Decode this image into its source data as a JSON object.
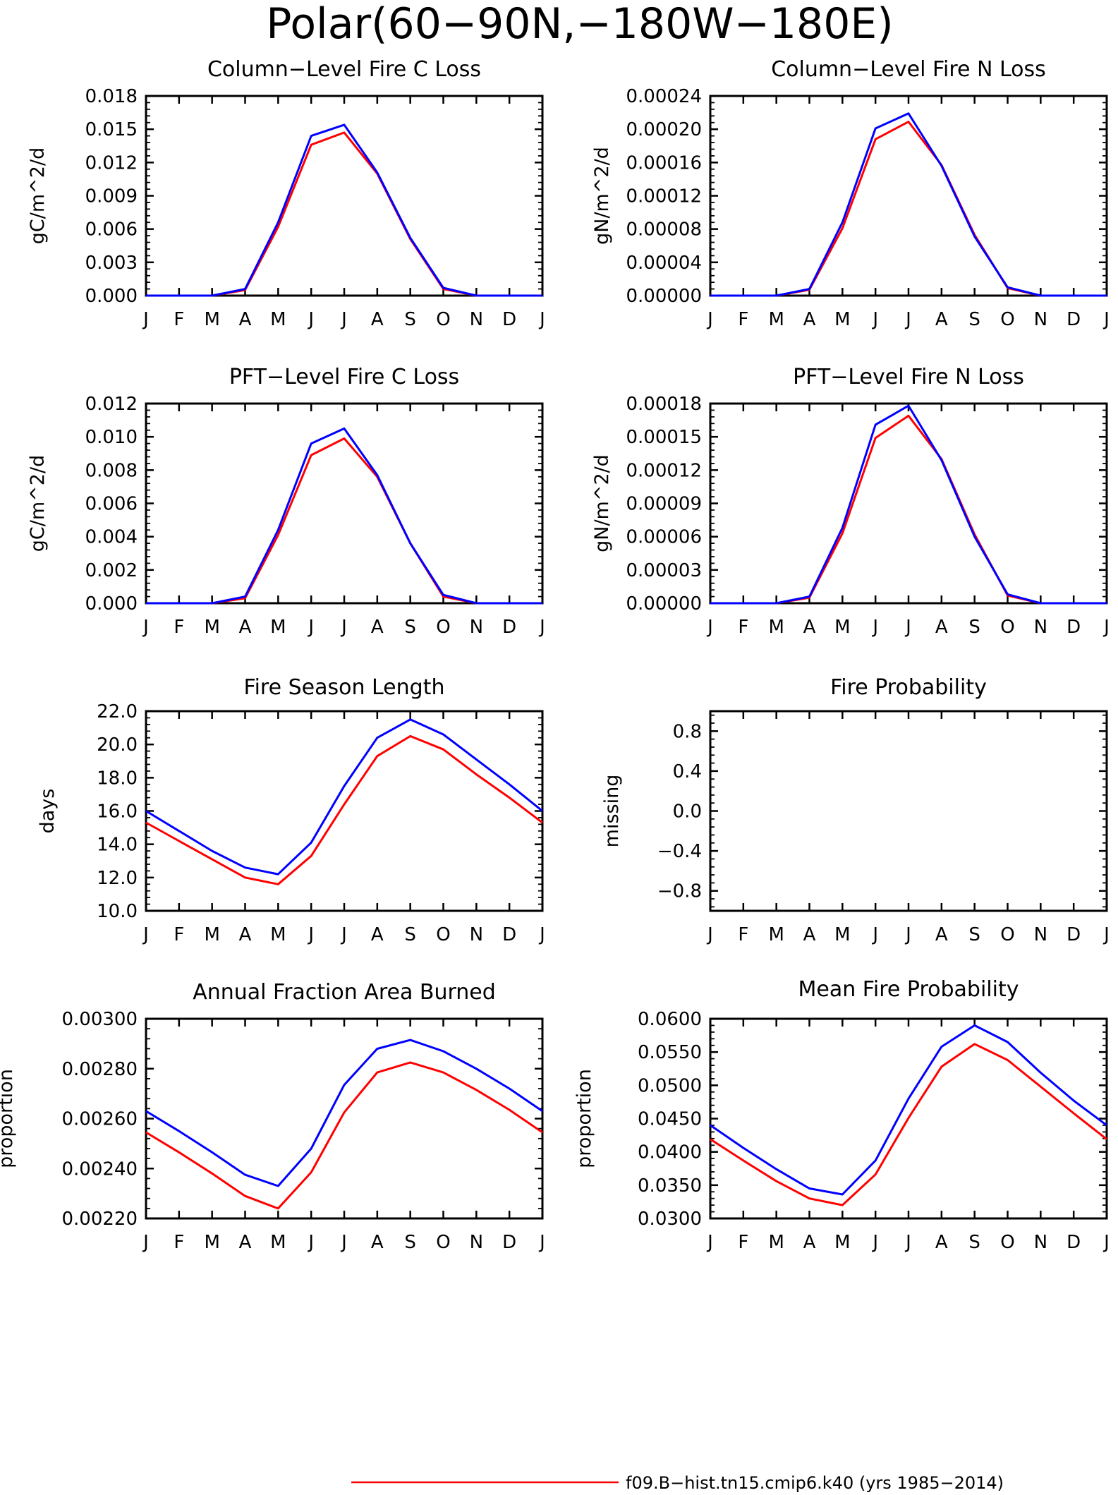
{
  "title": "Polar(60−90N,−180W−180E)",
  "month_labels": [
    "J",
    "F",
    "M",
    "A",
    "M",
    "J",
    "J",
    "A",
    "S",
    "O",
    "N",
    "D",
    "J"
  ],
  "colors": {
    "series1": "#ff0000",
    "series2": "#0000ff"
  },
  "legend": {
    "entry1": "f09.B−hist.tn15.cmip6.k40 (yrs 1985−2014)"
  },
  "chart_data": [
    {
      "type": "line",
      "title": "Column−Level Fire C Loss",
      "ylabel": "gC/m^2/d",
      "ylim": [
        0,
        0.018
      ],
      "yticks": [
        "0.000",
        "0.003",
        "0.006",
        "0.009",
        "0.012",
        "0.015",
        "0.018"
      ],
      "x": [
        "J",
        "F",
        "M",
        "A",
        "M",
        "J",
        "J",
        "A",
        "S",
        "O",
        "N",
        "D",
        "J"
      ],
      "series": [
        {
          "color": "#ff0000",
          "values": [
            0,
            0,
            0,
            0.0005,
            0.0062,
            0.0136,
            0.0147,
            0.011,
            0.0051,
            0.0006,
            0,
            0,
            0
          ]
        },
        {
          "color": "#0000ff",
          "values": [
            0,
            0,
            0,
            0.0006,
            0.0066,
            0.0144,
            0.0154,
            0.0111,
            0.0052,
            0.0007,
            0,
            0,
            0
          ]
        }
      ]
    },
    {
      "type": "line",
      "title": "Column−Level Fire N Loss",
      "ylabel": "gN/m^2/d",
      "ylim": [
        0,
        0.00024
      ],
      "yticks": [
        "0.00000",
        "0.00004",
        "0.00008",
        "0.00012",
        "0.00016",
        "0.00020",
        "0.00024"
      ],
      "x": [
        "J",
        "F",
        "M",
        "A",
        "M",
        "J",
        "J",
        "A",
        "S",
        "O",
        "N",
        "D",
        "J"
      ],
      "series": [
        {
          "color": "#ff0000",
          "values": [
            0,
            0,
            0,
            7e-06,
            8.1e-05,
            0.000188,
            0.000209,
            0.000157,
            7.3e-05,
            9e-06,
            0,
            0,
            0
          ]
        },
        {
          "color": "#0000ff",
          "values": [
            0,
            0,
            0,
            8e-06,
            8.8e-05,
            0.000201,
            0.000219,
            0.000156,
            7.1e-05,
            1e-05,
            0,
            0,
            0
          ]
        }
      ]
    },
    {
      "type": "line",
      "title": "PFT−Level Fire C Loss",
      "ylabel": "gC/m^2/d",
      "ylim": [
        0,
        0.012
      ],
      "yticks": [
        "0.000",
        "0.002",
        "0.004",
        "0.006",
        "0.008",
        "0.010",
        "0.012"
      ],
      "x": [
        "J",
        "F",
        "M",
        "A",
        "M",
        "J",
        "J",
        "A",
        "S",
        "O",
        "N",
        "D",
        "J"
      ],
      "series": [
        {
          "color": "#ff0000",
          "values": [
            0,
            0,
            0,
            0.0003,
            0.0041,
            0.0089,
            0.0099,
            0.0076,
            0.0036,
            0.0004,
            0,
            0,
            0
          ]
        },
        {
          "color": "#0000ff",
          "values": [
            0,
            0,
            0,
            0.0004,
            0.0044,
            0.0096,
            0.0105,
            0.0077,
            0.0036,
            0.0005,
            0,
            0,
            0
          ]
        }
      ]
    },
    {
      "type": "line",
      "title": "PFT−Level Fire N Loss",
      "ylabel": "gN/m^2/d",
      "ylim": [
        0,
        0.00018
      ],
      "yticks": [
        "0.00000",
        "0.00003",
        "0.00006",
        "0.00009",
        "0.00012",
        "0.00015",
        "0.00018"
      ],
      "x": [
        "J",
        "F",
        "M",
        "A",
        "M",
        "J",
        "J",
        "A",
        "S",
        "O",
        "N",
        "D",
        "J"
      ],
      "series": [
        {
          "color": "#ff0000",
          "values": [
            0,
            0,
            0,
            5e-06,
            6.3e-05,
            0.000149,
            0.000169,
            0.00013,
            6.2e-05,
            7e-06,
            0,
            0,
            0
          ]
        },
        {
          "color": "#0000ff",
          "values": [
            0,
            0,
            0,
            6e-06,
            6.8e-05,
            0.000161,
            0.000178,
            0.000129,
            6e-05,
            8e-06,
            0,
            0,
            0
          ]
        }
      ]
    },
    {
      "type": "line",
      "title": "Fire Season Length",
      "ylabel": "days",
      "ylim": [
        10,
        22
      ],
      "yticks": [
        "10.0",
        "12.0",
        "14.0",
        "16.0",
        "18.0",
        "20.0",
        "22.0"
      ],
      "x": [
        "J",
        "F",
        "M",
        "A",
        "M",
        "J",
        "J",
        "A",
        "S",
        "O",
        "N",
        "D",
        "J"
      ],
      "series": [
        {
          "color": "#ff0000",
          "values": [
            15.3,
            14.2,
            13.1,
            12.0,
            11.6,
            13.3,
            16.4,
            19.3,
            20.5,
            19.7,
            18.2,
            16.8,
            15.3
          ]
        },
        {
          "color": "#0000ff",
          "values": [
            16.0,
            14.8,
            13.6,
            12.6,
            12.2,
            14.1,
            17.5,
            20.4,
            21.5,
            20.6,
            19.1,
            17.6,
            16.0
          ]
        }
      ]
    },
    {
      "type": "line",
      "title": "Fire Probability",
      "ylabel": "missing",
      "ylim": [
        -1,
        1
      ],
      "yticks": [
        "−0.8",
        "−0.4",
        "0.0",
        "0.4",
        "0.8"
      ],
      "x": [
        "J",
        "F",
        "M",
        "A",
        "M",
        "J",
        "J",
        "A",
        "S",
        "O",
        "N",
        "D",
        "J"
      ],
      "series": []
    },
    {
      "type": "line",
      "title": "Annual Fraction Area Burned",
      "ylabel": "proportion",
      "ylim": [
        0.0022,
        0.003
      ],
      "yticks": [
        "0.00220",
        "0.00240",
        "0.00260",
        "0.00280",
        "0.00300"
      ],
      "x": [
        "J",
        "F",
        "M",
        "A",
        "M",
        "J",
        "J",
        "A",
        "S",
        "O",
        "N",
        "D",
        "J"
      ],
      "series": [
        {
          "color": "#ff0000",
          "values": [
            0.002545,
            0.002465,
            0.00238,
            0.00229,
            0.00224,
            0.002385,
            0.002625,
            0.002785,
            0.002825,
            0.002785,
            0.002715,
            0.002635,
            0.002545
          ]
        },
        {
          "color": "#0000ff",
          "values": [
            0.00263,
            0.00255,
            0.002465,
            0.002375,
            0.00233,
            0.00248,
            0.002735,
            0.00288,
            0.002915,
            0.00287,
            0.0028,
            0.00272,
            0.00263
          ]
        }
      ]
    },
    {
      "type": "line",
      "title": "Mean Fire Probability",
      "ylabel": "proportion",
      "ylim": [
        0.03,
        0.06
      ],
      "yticks": [
        "0.0300",
        "0.0350",
        "0.0400",
        "0.0450",
        "0.0500",
        "0.0550",
        "0.0600"
      ],
      "x": [
        "J",
        "F",
        "M",
        "A",
        "M",
        "J",
        "J",
        "A",
        "S",
        "O",
        "N",
        "D",
        "J"
      ],
      "series": [
        {
          "color": "#ff0000",
          "values": [
            0.0419,
            0.0387,
            0.0356,
            0.033,
            0.032,
            0.0366,
            0.0451,
            0.0528,
            0.0562,
            0.0538,
            0.0498,
            0.0458,
            0.0419
          ]
        },
        {
          "color": "#0000ff",
          "values": [
            0.044,
            0.0406,
            0.0374,
            0.0345,
            0.0336,
            0.0387,
            0.048,
            0.0558,
            0.059,
            0.0565,
            0.0519,
            0.0477,
            0.044
          ]
        }
      ]
    }
  ]
}
